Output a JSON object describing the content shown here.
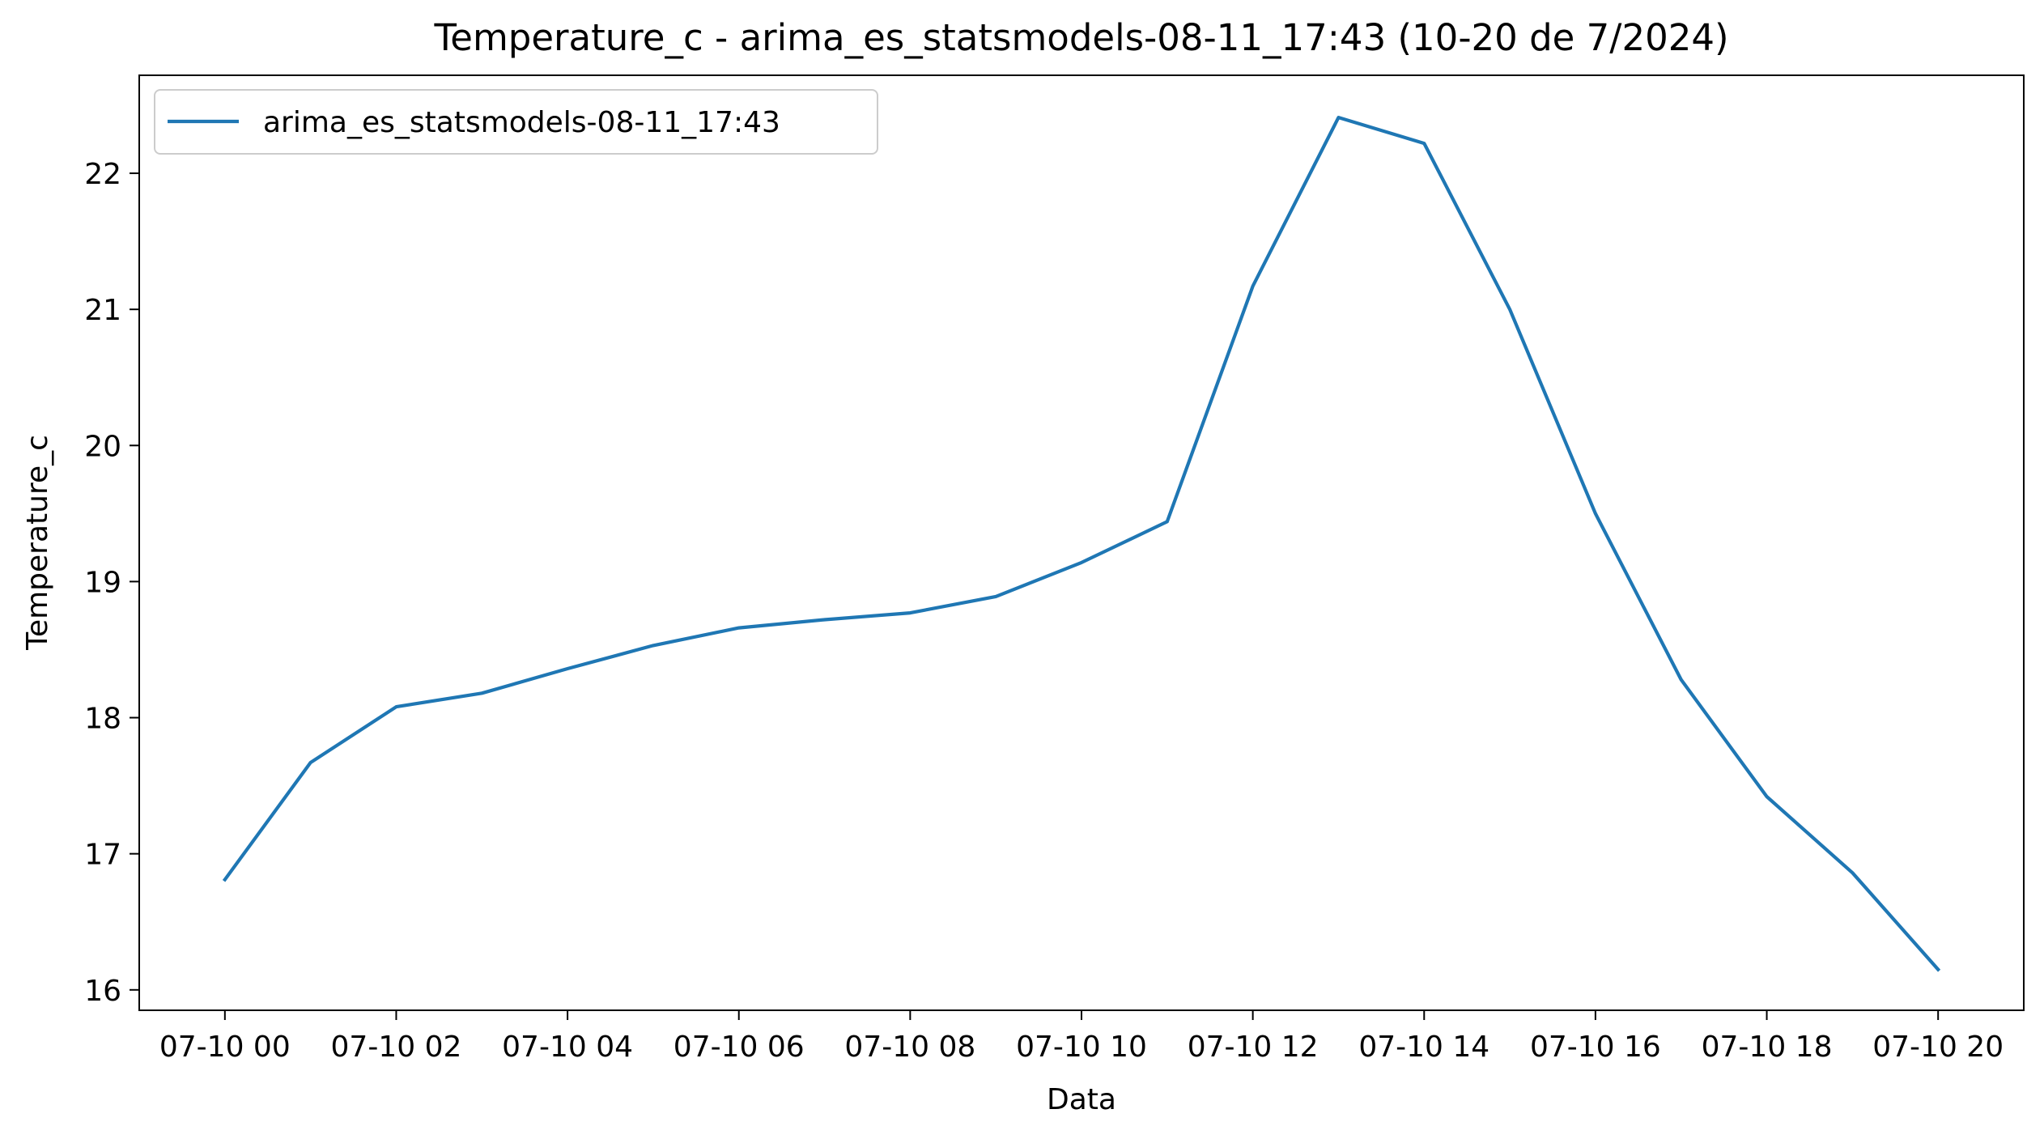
{
  "chart_data": {
    "type": "line",
    "title": "Temperature_c - arima_es_statsmodels-08-11_17:43 (10-20 de 7/2024)",
    "xlabel": "Data",
    "ylabel": "Temperature_c",
    "x_tick_labels": [
      "07-10 00",
      "07-10 02",
      "07-10 04",
      "07-10 06",
      "07-10 08",
      "07-10 10",
      "07-10 12",
      "07-10 14",
      "07-10 16",
      "07-10 18",
      "07-10 20"
    ],
    "y_ticks": [
      16,
      17,
      18,
      19,
      20,
      21,
      22
    ],
    "xlim": [
      "2024-07-09 23:00",
      "2024-07-10 21:00"
    ],
    "ylim": [
      15.85,
      22.72
    ],
    "grid": false,
    "legend_position": "top-left",
    "x": [
      "2024-07-10 00:00",
      "2024-07-10 01:00",
      "2024-07-10 02:00",
      "2024-07-10 03:00",
      "2024-07-10 04:00",
      "2024-07-10 05:00",
      "2024-07-10 06:00",
      "2024-07-10 07:00",
      "2024-07-10 08:00",
      "2024-07-10 09:00",
      "2024-07-10 10:00",
      "2024-07-10 11:00",
      "2024-07-10 12:00",
      "2024-07-10 13:00",
      "2024-07-10 14:00",
      "2024-07-10 15:00",
      "2024-07-10 16:00",
      "2024-07-10 17:00",
      "2024-07-10 18:00",
      "2024-07-10 19:00",
      "2024-07-10 20:00"
    ],
    "series": [
      {
        "name": "arima_es_statsmodels-08-11_17:43",
        "color": "#1f77b4",
        "values": [
          16.81,
          17.67,
          18.08,
          18.18,
          18.36,
          18.53,
          18.66,
          18.72,
          18.77,
          18.89,
          19.14,
          19.44,
          21.17,
          22.41,
          22.22,
          21.0,
          19.5,
          18.28,
          17.42,
          16.86,
          16.15
        ]
      }
    ]
  }
}
